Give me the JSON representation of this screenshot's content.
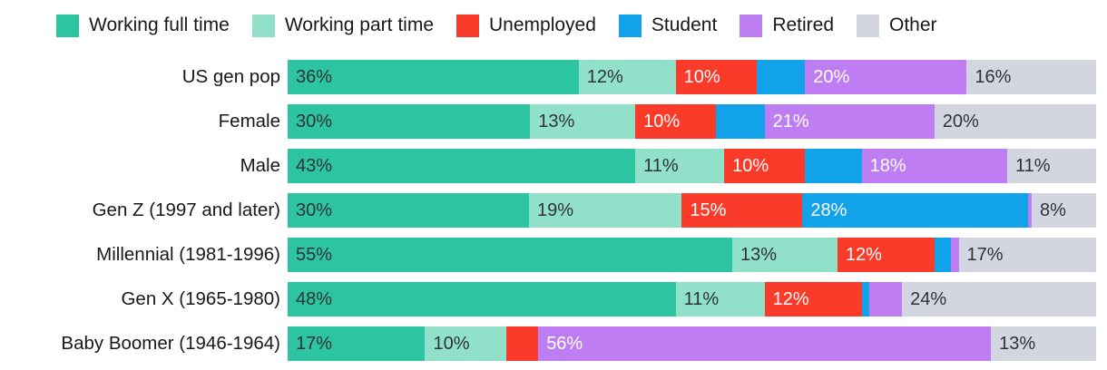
{
  "chart_data": {
    "type": "bar",
    "orientation": "horizontal",
    "stacked": true,
    "title": "",
    "xlabel": "",
    "ylabel": "",
    "xlim": [
      0,
      100
    ],
    "grid": false,
    "legend_position": "top",
    "value_unit": "%",
    "series": [
      {
        "name": "Working full time",
        "color": "#2DC4A1",
        "label_text_color": "#2f3337"
      },
      {
        "name": "Working part time",
        "color": "#90E0CA",
        "label_text_color": "#2f3337"
      },
      {
        "name": "Unemployed",
        "color": "#FB3B2A",
        "label_text_color": "#ffffff"
      },
      {
        "name": "Student",
        "color": "#12A2EA",
        "label_text_color": "#ffffff"
      },
      {
        "name": "Retired",
        "color": "#BF7DF3",
        "label_text_color": "#ffffff"
      },
      {
        "name": "Other",
        "color": "#D3D6E0",
        "label_text_color": "#2f3337"
      }
    ],
    "categories": [
      "US gen pop",
      "Female",
      "Male",
      "Gen Z (1997 and later)",
      "Millennial (1981-1996)",
      "Gen X (1965-1980)",
      "Baby Boomer (1946-1964)"
    ],
    "rows": [
      {
        "category": "US gen pop",
        "values": [
          36,
          12,
          10,
          6,
          20,
          16
        ],
        "labels": [
          "36%",
          "12%",
          "10%",
          "",
          "20%",
          "16%"
        ]
      },
      {
        "category": "Female",
        "values": [
          30,
          13,
          10,
          6,
          21,
          20
        ],
        "labels": [
          "30%",
          "13%",
          "10%",
          "",
          "21%",
          "20%"
        ]
      },
      {
        "category": "Male",
        "values": [
          43,
          11,
          10,
          7,
          18,
          11
        ],
        "labels": [
          "43%",
          "11%",
          "10%",
          "",
          "18%",
          "11%"
        ]
      },
      {
        "category": "Gen Z (1997 and later)",
        "values": [
          30,
          19,
          15,
          28,
          0.5,
          8
        ],
        "labels": [
          "30%",
          "19%",
          "15%",
          "28%",
          "",
          "8%"
        ]
      },
      {
        "category": "Millennial (1981-1996)",
        "values": [
          55,
          13,
          12,
          2,
          1,
          17
        ],
        "labels": [
          "55%",
          "13%",
          "12%",
          "",
          "",
          "17%"
        ]
      },
      {
        "category": "Gen X (1965-1980)",
        "values": [
          48,
          11,
          12,
          1,
          4,
          24
        ],
        "labels": [
          "48%",
          "11%",
          "12%",
          "",
          "",
          "24%"
        ]
      },
      {
        "category": "Baby Boomer (1946-1964)",
        "values": [
          17,
          10,
          4,
          0,
          56,
          13
        ],
        "labels": [
          "17%",
          "10%",
          "",
          "",
          "56%",
          "13%"
        ]
      }
    ]
  }
}
